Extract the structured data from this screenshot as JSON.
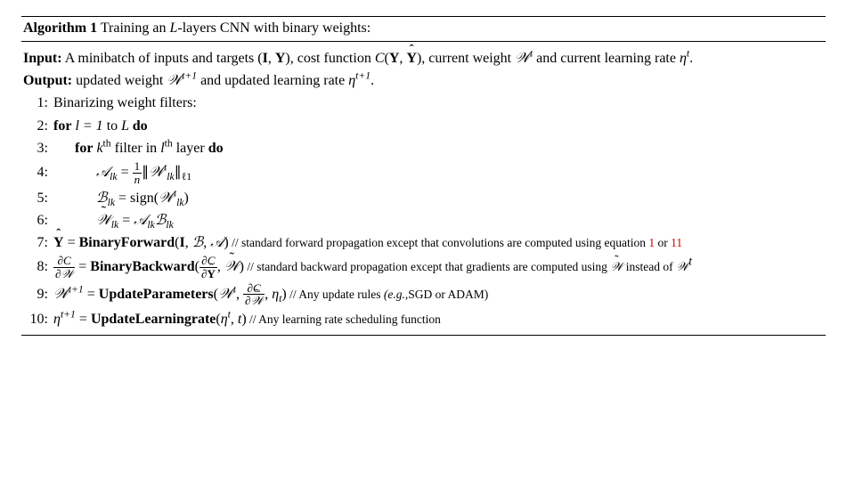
{
  "algorithm": {
    "number": "1",
    "title_prefix": "Algorithm 1",
    "title_text": "Training an ",
    "title_var": "L",
    "title_suffix": "-layers CNN with binary weights:",
    "input_label": "Input:",
    "input_text_a": " A minibatch of inputs and targets (",
    "input_I": "I",
    "input_comma1": ", ",
    "input_Y": "Y",
    "input_text_b": "), cost function ",
    "input_C": "C",
    "input_paren_open": "(",
    "input_Y2": "Y",
    "input_comma2": ", ",
    "input_Yhat": "Y",
    "input_paren_close": ")",
    "input_text_c": ", current weight ",
    "input_Wt": "𝒲",
    "input_Wt_sup": "t",
    "input_text_d": " and current learning rate ",
    "input_eta": "η",
    "input_eta_sup": "t",
    "input_period": ".",
    "output_label": "Output:",
    "output_text_a": " updated weight ",
    "output_Wt1": "𝒲",
    "output_Wt1_sup": "t+1",
    "output_text_b": " and updated learning rate ",
    "output_eta": "η",
    "output_eta_sup": "t+1",
    "output_period": ".",
    "line1_text": "Binarizing weight filters:",
    "line2_for": "for",
    "line2_text_a": " l = 1 ",
    "line2_to": "to",
    "line2_text_b": " L ",
    "line2_do": "do",
    "line3_for": "for",
    "line3_text_a": " k",
    "line3_th": "th",
    "line3_text_b": " filter in ",
    "line3_l": "l",
    "line3_th2": "th",
    "line3_text_c": " layer ",
    "line3_do": "do",
    "line4_A": "𝒜",
    "line4_Asub": "lk",
    "line4_eq": " = ",
    "line4_frac_num": "1",
    "line4_frac_den": "n",
    "line4_norm_l": "∥",
    "line4_W": "𝒲",
    "line4_W_sup": "t",
    "line4_W_sub": "lk",
    "line4_norm_r": "∥",
    "line4_norm_sub": "ℓ1",
    "line5_B": "ℬ",
    "line5_Bsub": "lk",
    "line5_eq": " = sign(",
    "line5_W": "𝒲",
    "line5_W_sup": "t",
    "line5_W_sub": "lk",
    "line5_close": ")",
    "line6_W": "𝒲",
    "line6_Wsub": "lk",
    "line6_eq": " = ",
    "line6_A": "𝒜",
    "line6_Asub": "lk",
    "line6_B": "ℬ",
    "line6_Bsub": "lk",
    "line7_Yhat": "Y",
    "line7_eq": " =   ",
    "line7_fn": "BinaryForward",
    "line7_args_open": "(",
    "line7_I": "I",
    "line7_c1": ", ",
    "line7_B": "ℬ",
    "line7_c2": ", ",
    "line7_A": "𝒜",
    "line7_args_close": ")",
    "line7_comment_a": "   // standard forward propagation except that convolutions are computed using equation ",
    "line7_ref1": "1",
    "line7_or": " or ",
    "line7_ref2": "11",
    "line8_lhs_num": "∂C",
    "line8_lhs_den_pre": "∂",
    "line8_lhs_den_W": "𝒲",
    "line8_eq": " = ",
    "line8_fn": "BinaryBackward",
    "line8_open": "(",
    "line8_arg1_num": "∂C",
    "line8_arg1_den_pre": "∂",
    "line8_arg1_den_Y": "Y",
    "line8_c1": ", ",
    "line8_Wtilde": "𝒲",
    "line8_close": ")",
    "line8_comment_a": "   // standard backward propagation except that gradients are computed using ",
    "line8_Wtilde2": "𝒲",
    "line8_comment_b": " instead of ",
    "line8_Wt": "𝒲",
    "line8_Wt_sup": "t",
    "line9_W": "𝒲",
    "line9_W_sup": "t+1",
    "line9_eq": " = ",
    "line9_fn": "UpdateParameters",
    "line9_open": "(",
    "line9_Wt": "𝒲",
    "line9_Wt_sup": "t",
    "line9_c1": ", ",
    "line9_frac_num": "∂C",
    "line9_frac_den_pre": "∂",
    "line9_frac_den_W": "𝒲",
    "line9_c2": ", ",
    "line9_eta": "η",
    "line9_eta_sub": "t",
    "line9_close": ")",
    "line9_comment": "   // Any update rules ",
    "line9_eg": "(e.g.,",
    "line9_comment_b": "SGD or ADAM)",
    "line10_eta": "η",
    "line10_eta_sup": "t+1",
    "line10_eq": " = ",
    "line10_fn": "UpdateLearningrate",
    "line10_open": "(",
    "line10_eta2": "η",
    "line10_eta2_sup": "t",
    "line10_c1": ", ",
    "line10_t": "t",
    "line10_close": ")",
    "line10_comment": "   // Any learning rate scheduling function",
    "linenos": {
      "l1": "1:",
      "l2": "2:",
      "l3": "3:",
      "l4": "4:",
      "l5": "5:",
      "l6": "6:",
      "l7": "7:",
      "l8": "8:",
      "l9": "9:",
      "l10": "10:"
    },
    "style": {
      "font_family": "Times New Roman",
      "font_size_pt": 12,
      "comment_font_size_pt": 10,
      "text_color": "#000000",
      "ref_color": "#d40000",
      "rule_color": "#000000",
      "background": "#ffffff"
    }
  }
}
